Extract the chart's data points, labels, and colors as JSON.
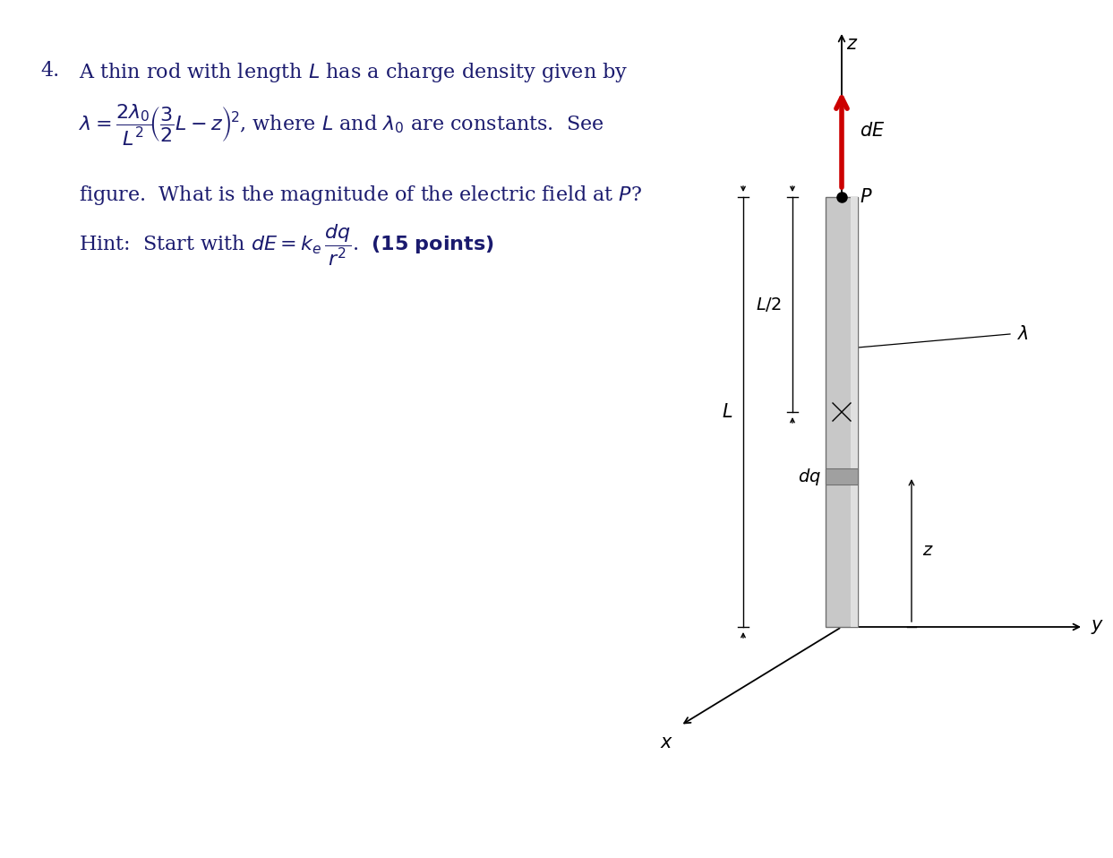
{
  "bg_color": "#ffffff",
  "text_color": "#1a1a6e",
  "diagram_text_color": "#000000",
  "fig_width": 12.43,
  "fig_height": 9.58,
  "rod_color": "#c8c8c8",
  "rod_edge_color": "#707070",
  "dq_color": "#a0a0a0",
  "arrow_color": "#cc0000",
  "axis_color": "#000000"
}
